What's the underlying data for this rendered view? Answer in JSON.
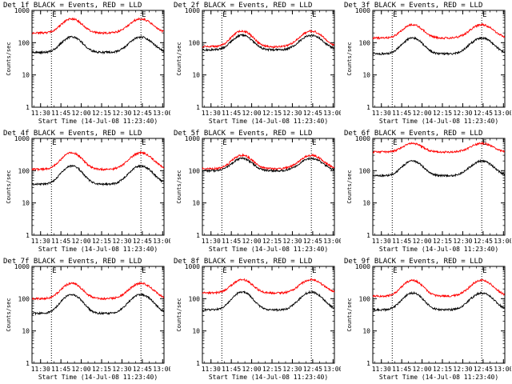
{
  "chart_data": [
    {
      "type": "line",
      "title": "Det 1f BLACK = Events, RED = LLD",
      "xlabel": "Start Time (14-Jul-08 11:23:40)",
      "ylabel": "Counts/sec",
      "xlim": [
        "11:23:40",
        "13:01:00"
      ],
      "ylim": [
        1,
        1000
      ],
      "yscale": "log",
      "xticks": [
        "11:30",
        "11:45",
        "12:00",
        "12:15",
        "12:30",
        "12:45",
        "13:00"
      ],
      "yticks": [
        "1",
        "10",
        "100",
        "1000"
      ],
      "markers": [
        {
          "time": "11:38",
          "label": "E"
        },
        {
          "time": "12:44",
          "label": "E"
        }
      ],
      "series": [
        {
          "name": "BLACK = Events",
          "color": "#000000",
          "base": 50,
          "peak": 150
        },
        {
          "name": "RED = LLD",
          "color": "#ff0000",
          "base": 200,
          "peak": 550
        }
      ]
    },
    {
      "type": "line",
      "title": "Det 2f BLACK = Events, RED = LLD",
      "xlabel": "Start Time (14-Jul-08 11:23:40)",
      "ylabel": "Counts/sec",
      "xlim": [
        "11:23:40",
        "13:01:00"
      ],
      "ylim": [
        1,
        1000
      ],
      "yscale": "log",
      "xticks": [
        "11:30",
        "11:45",
        "12:00",
        "12:15",
        "12:30",
        "12:45",
        "13:00"
      ],
      "yticks": [
        "1",
        "10",
        "100",
        "1000"
      ],
      "markers": [
        {
          "time": "11:38",
          "label": "E"
        },
        {
          "time": "12:44",
          "label": "E"
        }
      ],
      "series": [
        {
          "name": "BLACK = Events",
          "color": "#000000",
          "base": 60,
          "peak": 170
        },
        {
          "name": "RED = LLD",
          "color": "#ff0000",
          "base": 75,
          "peak": 230
        }
      ]
    },
    {
      "type": "line",
      "title": "Det 3f BLACK = Events, RED = LLD",
      "xlabel": "Start Time (14-Jul-08 11:23:40)",
      "ylabel": "Counts/sec",
      "xlim": [
        "11:23:40",
        "13:01:00"
      ],
      "ylim": [
        1,
        1000
      ],
      "yscale": "log",
      "xticks": [
        "11:30",
        "11:45",
        "12:00",
        "12:15",
        "12:30",
        "12:45",
        "13:00"
      ],
      "yticks": [
        "1",
        "10",
        "100",
        "1000"
      ],
      "markers": [
        {
          "time": "11:38",
          "label": "E"
        },
        {
          "time": "12:44",
          "label": "E"
        }
      ],
      "series": [
        {
          "name": "BLACK = Events",
          "color": "#000000",
          "base": 45,
          "peak": 140
        },
        {
          "name": "RED = LLD",
          "color": "#ff0000",
          "base": 140,
          "peak": 360
        }
      ]
    },
    {
      "type": "line",
      "title": "Det 4f BLACK = Events, RED = LLD",
      "xlabel": "Start Time (14-Jul-08 11:23:40)",
      "ylabel": "Counts/sec",
      "xlim": [
        "11:23:40",
        "13:01:00"
      ],
      "ylim": [
        1,
        1000
      ],
      "yscale": "log",
      "xticks": [
        "11:30",
        "11:45",
        "12:00",
        "12:15",
        "12:30",
        "12:45",
        "13:00"
      ],
      "yticks": [
        "1",
        "10",
        "100",
        "1000"
      ],
      "markers": [
        {
          "time": "11:38",
          "label": "E"
        },
        {
          "time": "12:44",
          "label": "E"
        }
      ],
      "series": [
        {
          "name": "BLACK = Events",
          "color": "#000000",
          "base": 38,
          "peak": 140
        },
        {
          "name": "RED = LLD",
          "color": "#ff0000",
          "base": 110,
          "peak": 360
        }
      ]
    },
    {
      "type": "line",
      "title": "Det 5f BLACK = Events, RED = LLD",
      "xlabel": "Start Time (14-Jul-08 11:23:40)",
      "ylabel": "Counts/sec",
      "xlim": [
        "11:23:40",
        "13:01:00"
      ],
      "ylim": [
        1,
        1000
      ],
      "yscale": "log",
      "xticks": [
        "11:30",
        "11:45",
        "12:00",
        "12:15",
        "12:30",
        "12:45",
        "13:00"
      ],
      "yticks": [
        "1",
        "10",
        "100",
        "1000"
      ],
      "markers": [
        {
          "time": "11:38",
          "label": "E"
        },
        {
          "time": "12:44",
          "label": "E"
        }
      ],
      "series": [
        {
          "name": "BLACK = Events",
          "color": "#000000",
          "base": 100,
          "peak": 240
        },
        {
          "name": "RED = LLD",
          "color": "#ff0000",
          "base": 115,
          "peak": 300
        }
      ]
    },
    {
      "type": "line",
      "title": "Det 6f BLACK = Events, RED = LLD",
      "xlabel": "Start Time (14-Jul-08 11:23:40)",
      "ylabel": "Counts/sec",
      "xlim": [
        "11:23:40",
        "13:01:00"
      ],
      "ylim": [
        1,
        1000
      ],
      "yscale": "log",
      "xticks": [
        "11:30",
        "11:45",
        "12:00",
        "12:15",
        "12:30",
        "12:45",
        "13:00"
      ],
      "yticks": [
        "1",
        "10",
        "100",
        "1000"
      ],
      "markers": [
        {
          "time": "11:38",
          "label": "E"
        },
        {
          "time": "12:44",
          "label": "E"
        }
      ],
      "series": [
        {
          "name": "BLACK = Events",
          "color": "#000000",
          "base": 70,
          "peak": 200
        },
        {
          "name": "RED = LLD",
          "color": "#ff0000",
          "base": 380,
          "peak": 700
        }
      ]
    },
    {
      "type": "line",
      "title": "Det 7f BLACK = Events, RED = LLD",
      "xlabel": "Start Time (14-Jul-08 11:23:40)",
      "ylabel": "Counts/sec",
      "xlim": [
        "11:23:40",
        "13:01:00"
      ],
      "ylim": [
        1,
        1000
      ],
      "yscale": "log",
      "xticks": [
        "11:30",
        "11:45",
        "12:00",
        "12:15",
        "12:30",
        "12:45",
        "13:00"
      ],
      "yticks": [
        "1",
        "10",
        "100",
        "1000"
      ],
      "markers": [
        {
          "time": "11:38",
          "label": "E"
        },
        {
          "time": "12:44",
          "label": "E"
        }
      ],
      "series": [
        {
          "name": "BLACK = Events",
          "color": "#000000",
          "base": 35,
          "peak": 135
        },
        {
          "name": "RED = LLD",
          "color": "#ff0000",
          "base": 100,
          "peak": 300
        }
      ]
    },
    {
      "type": "line",
      "title": "Det 8f BLACK = Events, RED = LLD",
      "xlabel": "Start Time (14-Jul-08 11:23:40)",
      "ylabel": "Counts/sec",
      "xlim": [
        "11:23:40",
        "13:01:00"
      ],
      "ylim": [
        1,
        1000
      ],
      "yscale": "log",
      "xticks": [
        "11:30",
        "11:45",
        "12:00",
        "12:15",
        "12:30",
        "12:45",
        "13:00"
      ],
      "yticks": [
        "1",
        "10",
        "100",
        "1000"
      ],
      "markers": [
        {
          "time": "11:38",
          "label": "E"
        },
        {
          "time": "12:44",
          "label": "E"
        }
      ],
      "series": [
        {
          "name": "BLACK = Events",
          "color": "#000000",
          "base": 45,
          "peak": 160
        },
        {
          "name": "RED = LLD",
          "color": "#ff0000",
          "base": 150,
          "peak": 390
        }
      ]
    },
    {
      "type": "line",
      "title": "Det 9f BLACK = Events, RED = LLD",
      "xlabel": "Start Time (14-Jul-08 11:23:40)",
      "ylabel": "Counts/sec",
      "xlim": [
        "11:23:40",
        "13:01:00"
      ],
      "ylim": [
        1,
        1000
      ],
      "yscale": "log",
      "xticks": [
        "11:30",
        "11:45",
        "12:00",
        "12:15",
        "12:30",
        "12:45",
        "13:00"
      ],
      "yticks": [
        "1",
        "10",
        "100",
        "1000"
      ],
      "markers": [
        {
          "time": "11:38",
          "label": "E"
        },
        {
          "time": "12:44",
          "label": "E"
        }
      ],
      "series": [
        {
          "name": "BLACK = Events",
          "color": "#000000",
          "base": 45,
          "peak": 150
        },
        {
          "name": "RED = LLD",
          "color": "#ff0000",
          "base": 120,
          "peak": 370
        }
      ]
    }
  ]
}
